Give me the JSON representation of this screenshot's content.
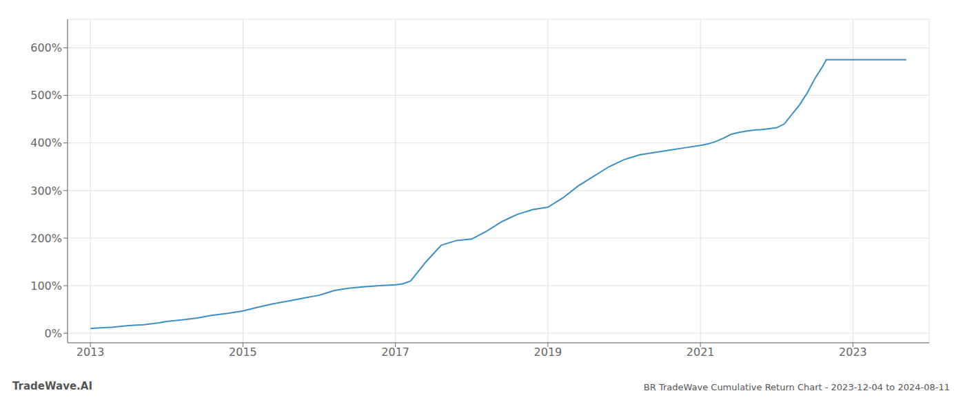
{
  "chart_data": {
    "type": "line",
    "title": "BR TradeWave Cumulative Return Chart - 2023-12-04 to 2024-08-11",
    "annotations": [
      "TradeWave.AI"
    ],
    "color": "#3a8fc4",
    "grid": true,
    "x": [
      2013.0,
      2013.1,
      2013.3,
      2013.5,
      2013.7,
      2013.9,
      2014.0,
      2014.2,
      2014.4,
      2014.6,
      2014.8,
      2015.0,
      2015.2,
      2015.4,
      2015.6,
      2015.8,
      2016.0,
      2016.1,
      2016.2,
      2016.4,
      2016.6,
      2016.8,
      2017.0,
      2017.1,
      2017.2,
      2017.4,
      2017.6,
      2017.8,
      2018.0,
      2018.2,
      2018.4,
      2018.6,
      2018.8,
      2019.0,
      2019.2,
      2019.4,
      2019.6,
      2019.8,
      2020.0,
      2020.2,
      2020.4,
      2020.6,
      2020.8,
      2021.0,
      2021.1,
      2021.2,
      2021.3,
      2021.4,
      2021.5,
      2021.6,
      2021.7,
      2021.8,
      2021.9,
      2022.0,
      2022.1,
      2022.2,
      2022.3,
      2022.4,
      2022.5,
      2022.6,
      2022.65,
      2023.0,
      2023.5,
      2023.7
    ],
    "values": [
      10,
      11,
      13,
      16,
      18,
      22,
      25,
      28,
      32,
      38,
      42,
      47,
      55,
      62,
      68,
      74,
      80,
      85,
      90,
      95,
      98,
      100,
      102,
      104,
      110,
      150,
      185,
      195,
      198,
      215,
      235,
      250,
      260,
      265,
      285,
      310,
      330,
      350,
      365,
      375,
      380,
      385,
      390,
      395,
      398,
      403,
      410,
      418,
      422,
      425,
      427,
      428,
      430,
      432,
      440,
      460,
      480,
      505,
      535,
      560,
      575,
      575,
      575,
      575
    ],
    "xlim": [
      2012.7,
      2024.0
    ],
    "ylim": [
      -20,
      660
    ],
    "xticks": [
      2013,
      2015,
      2017,
      2019,
      2021,
      2023
    ],
    "yticks": [
      {
        "value": 0,
        "label": "0%"
      },
      {
        "value": 100,
        "label": "100%"
      },
      {
        "value": 200,
        "label": "200%"
      },
      {
        "value": 300,
        "label": "300%"
      },
      {
        "value": 400,
        "label": "400%"
      },
      {
        "value": 500,
        "label": "500%"
      },
      {
        "value": 600,
        "label": "600%"
      }
    ]
  }
}
